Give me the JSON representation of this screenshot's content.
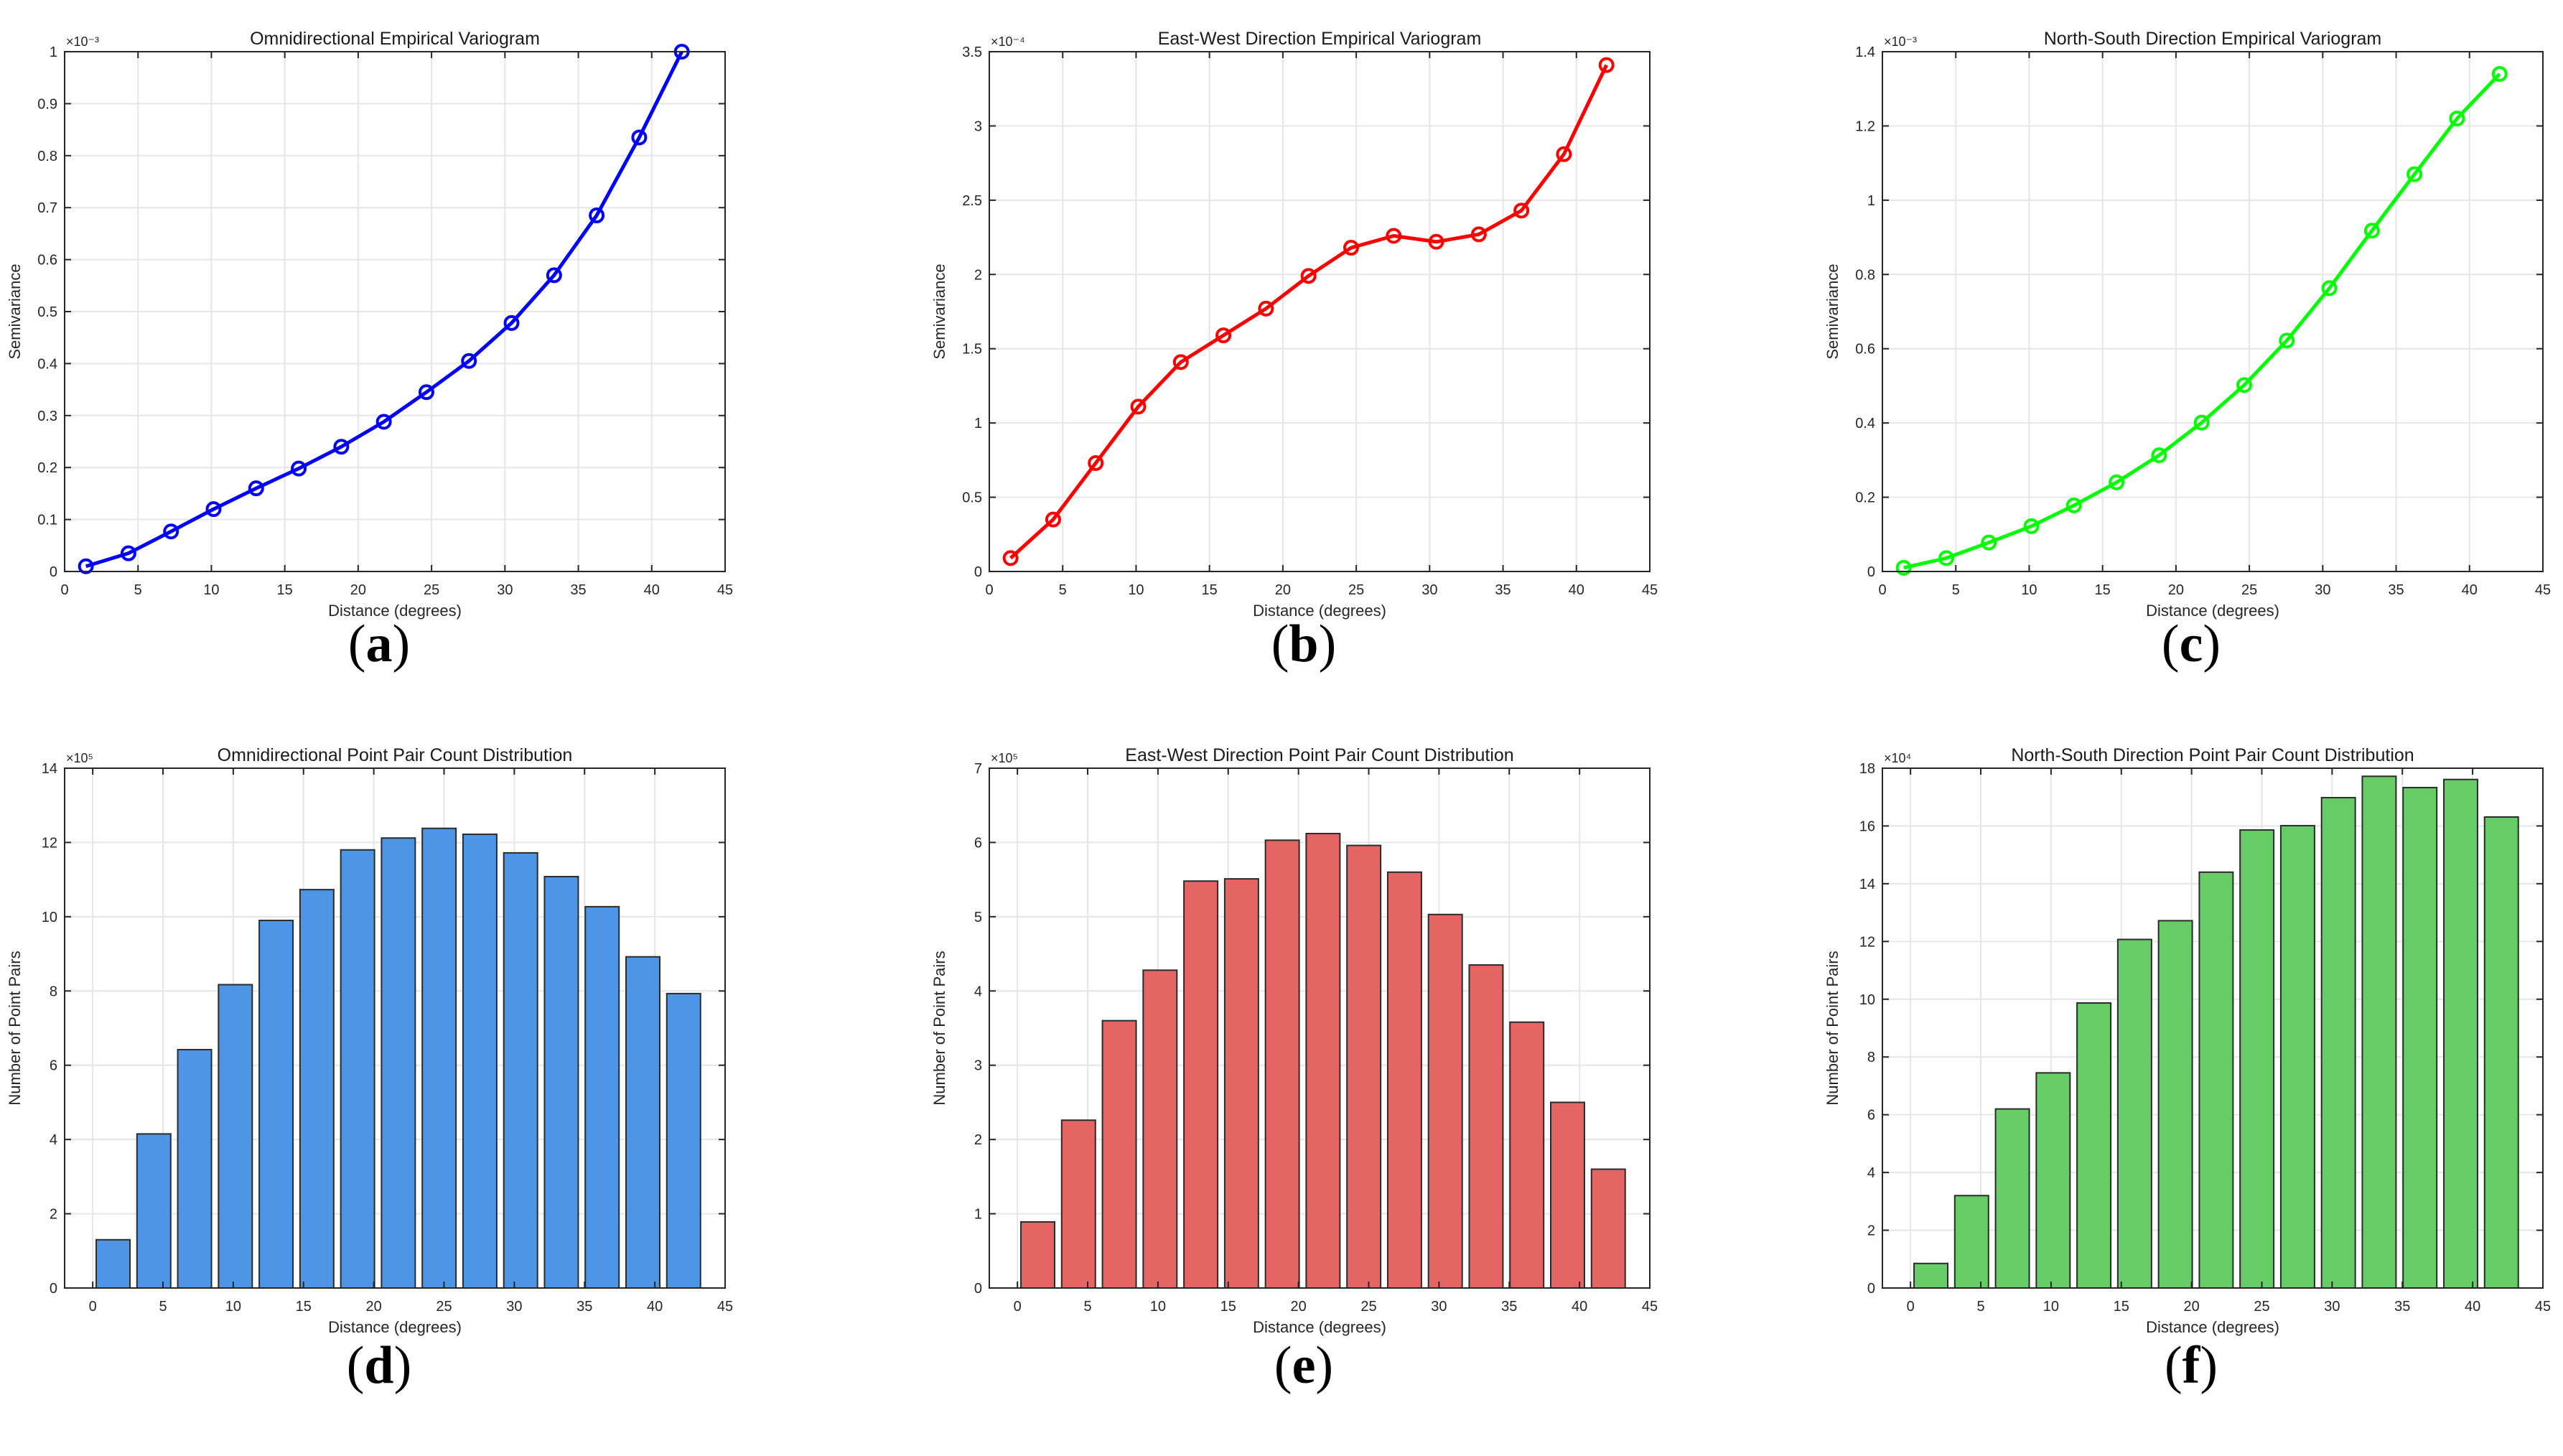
{
  "chart_data": [
    {
      "id": "a",
      "type": "line",
      "panel_label": "a",
      "title": "Omnidirectional Empirical Variogram",
      "xlabel": "Distance (degrees)",
      "ylabel": "Semivariance",
      "exponent": "×10⁻³",
      "xlim": [
        0,
        45
      ],
      "ylim": [
        0,
        1
      ],
      "xticks": [
        0,
        5,
        10,
        15,
        20,
        25,
        30,
        35,
        40,
        45
      ],
      "xtick_labels": [
        "0",
        "5",
        "10",
        "15",
        "20",
        "25",
        "30",
        "35",
        "40",
        "45"
      ],
      "yticks": [
        0,
        0.1,
        0.2,
        0.3,
        0.4,
        0.5,
        0.6,
        0.7,
        0.8,
        0.9,
        1
      ],
      "ytick_labels": [
        "0",
        "0.1",
        "0.2",
        "0.3",
        "0.4",
        "0.5",
        "0.6",
        "0.7",
        "0.8",
        "0.9",
        "1"
      ],
      "grid": true,
      "color": "#0000ff",
      "x": [
        1.45,
        4.35,
        7.25,
        10.15,
        13.05,
        15.95,
        18.85,
        21.75,
        24.65,
        27.55,
        30.45,
        33.35,
        36.25,
        39.15,
        42.05
      ],
      "values": [
        0.01,
        0.035,
        0.077,
        0.12,
        0.16,
        0.198,
        0.24,
        0.288,
        0.345,
        0.405,
        0.478,
        0.57,
        0.685,
        0.835,
        1.0
      ]
    },
    {
      "id": "b",
      "type": "line",
      "panel_label": "b",
      "title": "East-West Direction Empirical Variogram",
      "xlabel": "Distance (degrees)",
      "ylabel": "Semivariance",
      "exponent": "×10⁻⁴",
      "xlim": [
        0,
        45
      ],
      "ylim": [
        0,
        3.5
      ],
      "xticks": [
        0,
        5,
        10,
        15,
        20,
        25,
        30,
        35,
        40,
        45
      ],
      "xtick_labels": [
        "0",
        "5",
        "10",
        "15",
        "20",
        "25",
        "30",
        "35",
        "40",
        "45"
      ],
      "yticks": [
        0,
        0.5,
        1,
        1.5,
        2,
        2.5,
        3,
        3.5
      ],
      "ytick_labels": [
        "0",
        "0.5",
        "1",
        "1.5",
        "2",
        "2.5",
        "3",
        "3.5"
      ],
      "grid": true,
      "color": "#ff0000",
      "x": [
        1.45,
        4.35,
        7.25,
        10.15,
        13.05,
        15.95,
        18.85,
        21.75,
        24.65,
        27.55,
        30.45,
        33.35,
        36.25,
        39.15,
        42.05
      ],
      "values": [
        0.09,
        0.35,
        0.73,
        1.11,
        1.41,
        1.59,
        1.77,
        1.99,
        2.18,
        2.26,
        2.22,
        2.27,
        2.43,
        2.81,
        3.41
      ]
    },
    {
      "id": "c",
      "type": "line",
      "panel_label": "c",
      "title": "North-South Direction Empirical Variogram",
      "xlabel": "Distance (degrees)",
      "ylabel": "Semivariance",
      "exponent": "×10⁻³",
      "xlim": [
        0,
        45
      ],
      "ylim": [
        0,
        1.4
      ],
      "xticks": [
        0,
        5,
        10,
        15,
        20,
        25,
        30,
        35,
        40,
        45
      ],
      "xtick_labels": [
        "0",
        "5",
        "10",
        "15",
        "20",
        "25",
        "30",
        "35",
        "40",
        "45"
      ],
      "yticks": [
        0,
        0.2,
        0.4,
        0.6,
        0.8,
        1,
        1.2,
        1.4
      ],
      "ytick_labels": [
        "0",
        "0.2",
        "0.4",
        "0.6",
        "0.8",
        "1",
        "1.2",
        "1.4"
      ],
      "grid": true,
      "color": "#00ff00",
      "x": [
        1.45,
        4.35,
        7.25,
        10.15,
        13.05,
        15.95,
        18.85,
        21.75,
        24.65,
        27.55,
        30.45,
        33.35,
        36.25,
        39.15,
        42.05
      ],
      "values": [
        0.01,
        0.036,
        0.078,
        0.122,
        0.178,
        0.24,
        0.313,
        0.401,
        0.502,
        0.622,
        0.763,
        0.918,
        1.07,
        1.22,
        1.34
      ]
    },
    {
      "id": "d",
      "type": "bar",
      "panel_label": "d",
      "title": "Omnidirectional Point Pair Count Distribution",
      "xlabel": "Distance (degrees)",
      "ylabel": "Number of Point Pairs",
      "exponent": "×10⁵",
      "xlim": [
        -2,
        45
      ],
      "ylim": [
        0,
        14
      ],
      "xticks": [
        0,
        5,
        10,
        15,
        20,
        25,
        30,
        35,
        40,
        45
      ],
      "xtick_labels": [
        "0",
        "5",
        "10",
        "15",
        "20",
        "25",
        "30",
        "35",
        "40",
        "45"
      ],
      "yticks": [
        0,
        2,
        4,
        6,
        8,
        10,
        12,
        14
      ],
      "ytick_labels": [
        "0",
        "2",
        "4",
        "6",
        "8",
        "10",
        "12",
        "14"
      ],
      "grid": true,
      "color": "#4d96e6",
      "bar_width": 2.4,
      "x": [
        1.45,
        4.35,
        7.25,
        10.15,
        13.05,
        15.95,
        18.85,
        21.75,
        24.65,
        27.55,
        30.45,
        33.35,
        36.25,
        39.15,
        42.05
      ],
      "values": [
        1.3,
        4.15,
        6.42,
        8.17,
        9.9,
        10.73,
        11.8,
        12.12,
        12.38,
        12.22,
        11.72,
        11.08,
        10.27,
        8.92,
        7.93
      ]
    },
    {
      "id": "e",
      "type": "bar",
      "panel_label": "e",
      "title": "East-West Direction Point Pair Count Distribution",
      "xlabel": "Distance (degrees)",
      "ylabel": "Number of Point Pairs",
      "exponent": "×10⁵",
      "xlim": [
        -2,
        45
      ],
      "ylim": [
        0,
        7
      ],
      "xticks": [
        0,
        5,
        10,
        15,
        20,
        25,
        30,
        35,
        40,
        45
      ],
      "xtick_labels": [
        "0",
        "5",
        "10",
        "15",
        "20",
        "25",
        "30",
        "35",
        "40",
        "45"
      ],
      "yticks": [
        0,
        1,
        2,
        3,
        4,
        5,
        6,
        7
      ],
      "ytick_labels": [
        "0",
        "1",
        "2",
        "3",
        "4",
        "5",
        "6",
        "7"
      ],
      "grid": true,
      "color": "#e56464",
      "bar_width": 2.4,
      "x": [
        1.45,
        4.35,
        7.25,
        10.15,
        13.05,
        15.95,
        18.85,
        21.75,
        24.65,
        27.55,
        30.45,
        33.35,
        36.25,
        39.15,
        42.05
      ],
      "values": [
        0.89,
        2.26,
        3.6,
        4.28,
        5.48,
        5.51,
        6.03,
        6.12,
        5.96,
        5.6,
        5.03,
        4.35,
        3.58,
        2.5,
        1.6
      ]
    },
    {
      "id": "f",
      "type": "bar",
      "panel_label": "f",
      "title": "North-South Direction Point Pair Count Distribution",
      "xlabel": "Distance (degrees)",
      "ylabel": "Number of Point Pairs",
      "exponent": "×10⁴",
      "xlim": [
        -2,
        45
      ],
      "ylim": [
        0,
        18
      ],
      "xticks": [
        0,
        5,
        10,
        15,
        20,
        25,
        30,
        35,
        40,
        45
      ],
      "xtick_labels": [
        "0",
        "5",
        "10",
        "15",
        "20",
        "25",
        "30",
        "35",
        "40",
        "45"
      ],
      "yticks": [
        0,
        2,
        4,
        6,
        8,
        10,
        12,
        14,
        16,
        18
      ],
      "ytick_labels": [
        "0",
        "2",
        "4",
        "6",
        "8",
        "10",
        "12",
        "14",
        "16",
        "18"
      ],
      "grid": true,
      "color": "#66cc66",
      "bar_width": 2.4,
      "x": [
        1.45,
        4.35,
        7.25,
        10.15,
        13.05,
        15.95,
        18.85,
        21.75,
        24.65,
        27.55,
        30.45,
        33.35,
        36.25,
        39.15,
        42.05
      ],
      "values": [
        0.85,
        3.2,
        6.2,
        7.45,
        9.87,
        12.07,
        12.72,
        14.4,
        15.86,
        16.01,
        16.98,
        17.72,
        17.33,
        17.61,
        16.31
      ]
    }
  ]
}
